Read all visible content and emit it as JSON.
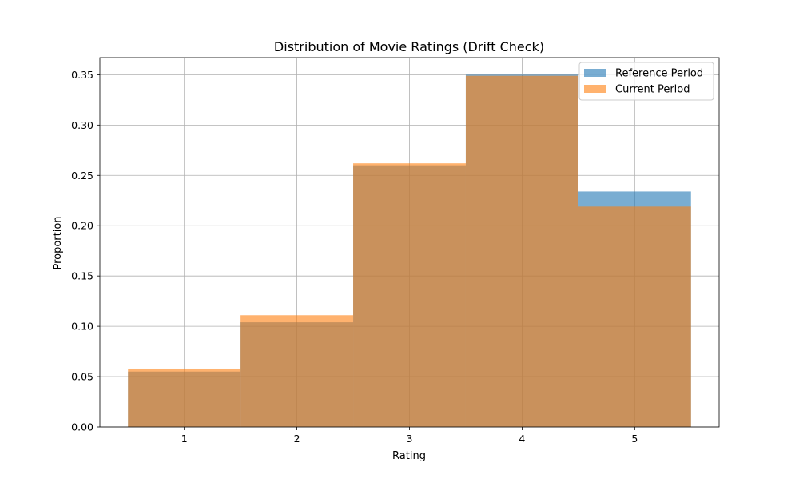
{
  "chart_data": {
    "type": "bar",
    "title": "Distribution of Movie Ratings (Drift Check)",
    "xlabel": "Rating",
    "ylabel": "Proportion",
    "categories": [
      1,
      2,
      3,
      4,
      5
    ],
    "bin_edges": [
      0.5,
      1.5,
      2.5,
      3.5,
      4.5,
      5.5
    ],
    "xlim": [
      0.25,
      5.75
    ],
    "ylim": [
      0,
      0.367
    ],
    "xticks": [
      "1",
      "2",
      "3",
      "4",
      "5"
    ],
    "yticks": [
      "0.00",
      "0.05",
      "0.10",
      "0.15",
      "0.20",
      "0.25",
      "0.30",
      "0.35"
    ],
    "grid": true,
    "legend_position": "top-right",
    "series": [
      {
        "name": "Reference Period",
        "values": [
          0.055,
          0.104,
          0.26,
          0.35,
          0.234
        ],
        "color": "#1f77b4",
        "alpha": 0.6
      },
      {
        "name": "Current Period",
        "values": [
          0.058,
          0.111,
          0.262,
          0.349,
          0.219
        ],
        "color": "#ff7f0e",
        "alpha": 0.6
      }
    ]
  }
}
